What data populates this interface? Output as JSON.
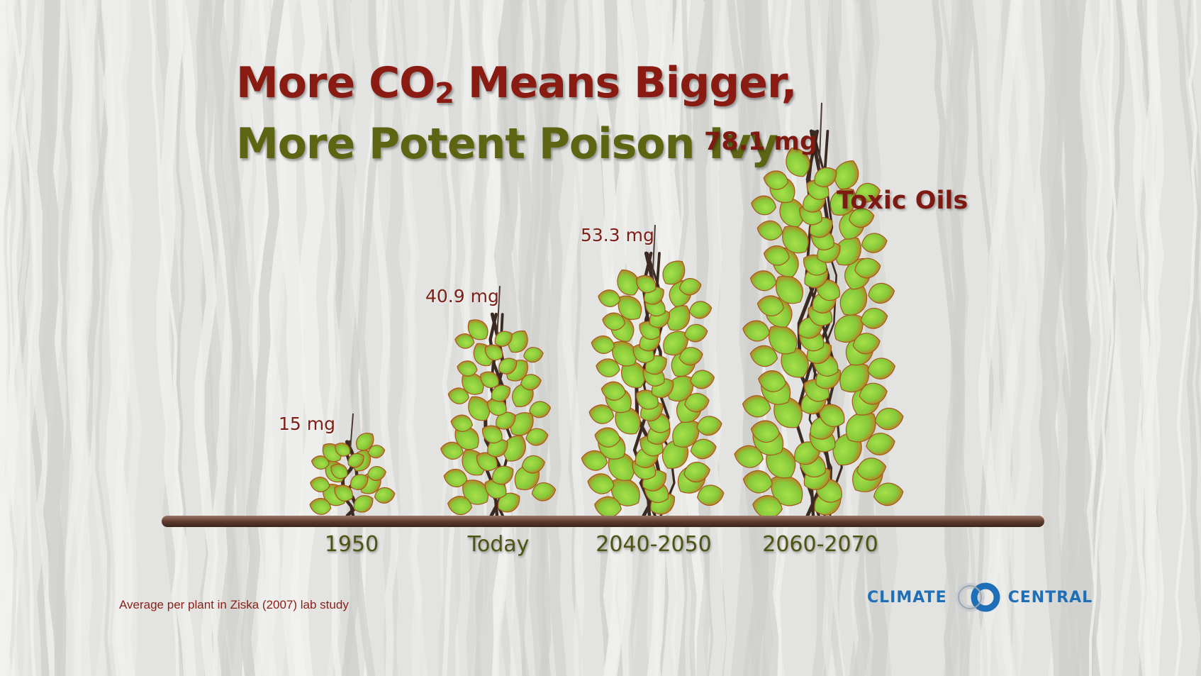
{
  "chart_data": {
    "type": "bar",
    "title_line1_prefix": "More CO",
    "title_line1_sub": "2",
    "title_line1_suffix": " Means Bigger,",
    "title_line2": "More Potent Poison Ivy",
    "categories": [
      "1950",
      "Today",
      "2040-2050",
      "2060-2070"
    ],
    "values": [
      15,
      40.9,
      53.3,
      78.1
    ],
    "value_labels": [
      "15 mg",
      "40.9 mg",
      "53.3 mg",
      "78.1 mg"
    ],
    "annotation": "Toxic Oils",
    "footnote": "Average per plant in Ziska (2007) lab study",
    "ylim": [
      0,
      80
    ],
    "grid": false,
    "legend": "none"
  },
  "brand": {
    "word_left": "CLIMATE",
    "word_right": "CENTRAL",
    "color": "#1f6fb8"
  },
  "colors": {
    "title_red": "#8a1b12",
    "title_green": "#5d6512",
    "leaf_green": "#86c93a",
    "leaf_edge": "#b8611f",
    "stem": "#3b2a22",
    "ground": "#6b4a3a"
  }
}
